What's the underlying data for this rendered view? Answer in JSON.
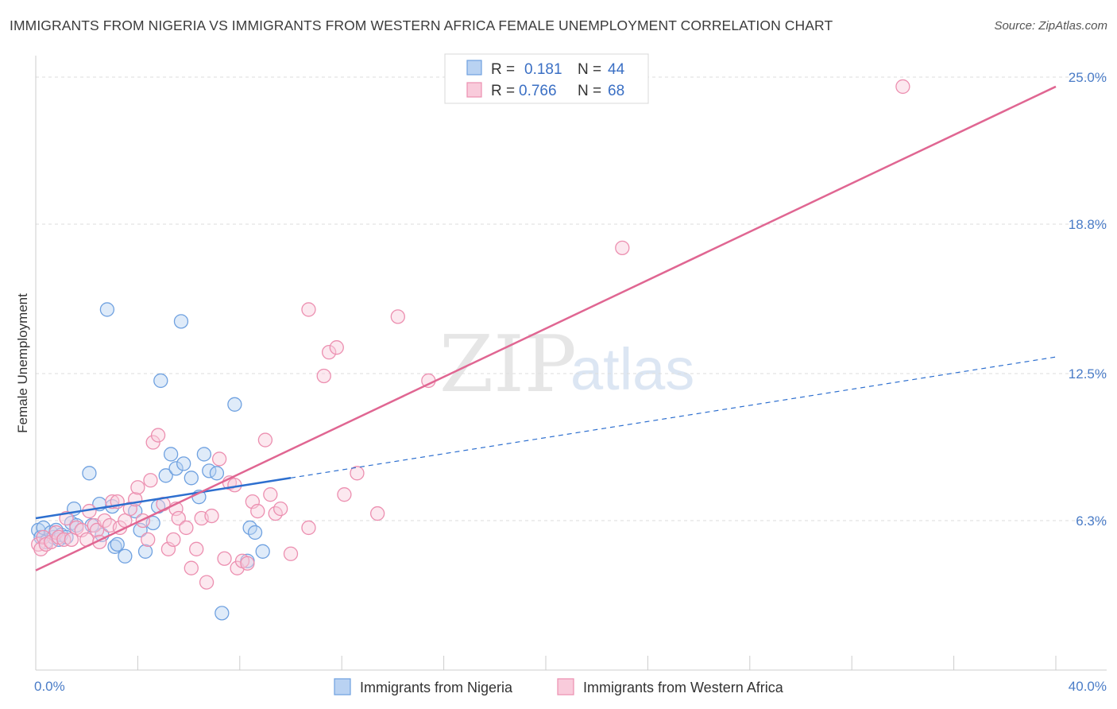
{
  "title": "IMMIGRANTS FROM NIGERIA VS IMMIGRANTS FROM WESTERN AFRICA FEMALE UNEMPLOYMENT CORRELATION CHART",
  "source": "Source: ZipAtlas.com",
  "watermark": {
    "zip": "ZIP",
    "atlas": "atlas"
  },
  "colors": {
    "nigeria": "#6fa1e0",
    "nigeria_fill": "#b9d2f2",
    "nigeria_line": "#2d6fcf",
    "western_africa": "#ec8fb0",
    "western_africa_fill": "#f9cbdb",
    "western_africa_line": "#e06692",
    "tick_label": "#4a7cc7",
    "grid": "#dddddd"
  },
  "legend": {
    "rows": [
      {
        "r_label": "R =",
        "r_value": "0.181",
        "n_label": "N =",
        "n_value": "44"
      },
      {
        "r_label": "R =",
        "r_value": "0.766",
        "n_label": "N =",
        "n_value": "68"
      }
    ]
  },
  "chart_data": {
    "type": "scatter",
    "title": "IMMIGRANTS FROM NIGERIA VS IMMIGRANTS FROM WESTERN AFRICA FEMALE UNEMPLOYMENT CORRELATION CHART",
    "xlabel": "",
    "ylabel": "Female Unemployment",
    "xlim": [
      0,
      40
    ],
    "ylim": [
      0,
      26.5
    ],
    "x_tick_labels": [
      "0.0%",
      "40.0%"
    ],
    "y_ticks": [
      6.3,
      12.5,
      18.8,
      25.0
    ],
    "y_tick_labels": [
      "6.3%",
      "12.5%",
      "18.8%",
      "25.0%"
    ],
    "grid": true,
    "legend_position": "top-center",
    "series": [
      {
        "name": "Immigrants from Nigeria",
        "r": 0.181,
        "n": 44,
        "trend": {
          "x": [
            0,
            10
          ],
          "y": [
            6.4,
            8.1
          ],
          "dashed_to": {
            "x": 40,
            "y": 13.2
          }
        },
        "points": [
          [
            0.1,
            5.9
          ],
          [
            0.2,
            5.6
          ],
          [
            0.3,
            6.0
          ],
          [
            0.4,
            5.4
          ],
          [
            0.6,
            5.8
          ],
          [
            0.7,
            5.6
          ],
          [
            0.8,
            5.9
          ],
          [
            0.9,
            5.5
          ],
          [
            1.0,
            5.7
          ],
          [
            1.2,
            5.6
          ],
          [
            1.4,
            6.2
          ],
          [
            1.6,
            6.1
          ],
          [
            1.5,
            6.8
          ],
          [
            2.1,
            8.3
          ],
          [
            2.2,
            6.1
          ],
          [
            2.5,
            7.0
          ],
          [
            2.6,
            5.7
          ],
          [
            2.8,
            15.2
          ],
          [
            3.0,
            6.9
          ],
          [
            3.1,
            5.2
          ],
          [
            3.2,
            5.3
          ],
          [
            3.5,
            4.8
          ],
          [
            3.9,
            6.7
          ],
          [
            4.1,
            5.9
          ],
          [
            4.3,
            5.0
          ],
          [
            4.6,
            6.2
          ],
          [
            4.8,
            6.9
          ],
          [
            4.9,
            12.2
          ],
          [
            5.1,
            8.2
          ],
          [
            5.3,
            9.1
          ],
          [
            5.5,
            8.5
          ],
          [
            5.7,
            14.7
          ],
          [
            5.8,
            8.7
          ],
          [
            6.1,
            8.1
          ],
          [
            6.4,
            7.3
          ],
          [
            6.6,
            9.1
          ],
          [
            6.8,
            8.4
          ],
          [
            7.1,
            8.3
          ],
          [
            7.3,
            2.4
          ],
          [
            7.8,
            11.2
          ],
          [
            8.3,
            4.6
          ],
          [
            8.4,
            6.0
          ],
          [
            8.6,
            5.8
          ],
          [
            8.9,
            5.0
          ]
        ]
      },
      {
        "name": "Immigrants from Western Africa",
        "r": 0.766,
        "n": 68,
        "trend": {
          "x": [
            0,
            40
          ],
          "y": [
            4.2,
            24.6
          ]
        },
        "points": [
          [
            0.1,
            5.3
          ],
          [
            0.2,
            5.1
          ],
          [
            0.3,
            5.6
          ],
          [
            0.4,
            5.3
          ],
          [
            0.6,
            5.4
          ],
          [
            0.8,
            5.8
          ],
          [
            0.9,
            5.6
          ],
          [
            1.1,
            5.5
          ],
          [
            1.2,
            6.4
          ],
          [
            1.4,
            5.5
          ],
          [
            1.6,
            6.0
          ],
          [
            1.8,
            5.9
          ],
          [
            2.0,
            5.5
          ],
          [
            2.1,
            6.7
          ],
          [
            2.3,
            6.1
          ],
          [
            2.4,
            5.9
          ],
          [
            2.5,
            5.4
          ],
          [
            2.7,
            6.3
          ],
          [
            2.9,
            6.1
          ],
          [
            3.0,
            7.1
          ],
          [
            3.2,
            7.1
          ],
          [
            3.3,
            6.0
          ],
          [
            3.5,
            6.3
          ],
          [
            3.7,
            6.8
          ],
          [
            3.9,
            7.2
          ],
          [
            4.0,
            7.7
          ],
          [
            4.2,
            6.3
          ],
          [
            4.4,
            5.5
          ],
          [
            4.5,
            8.0
          ],
          [
            4.6,
            9.6
          ],
          [
            4.8,
            9.9
          ],
          [
            5.0,
            7.0
          ],
          [
            5.2,
            5.1
          ],
          [
            5.4,
            5.5
          ],
          [
            5.5,
            6.8
          ],
          [
            5.6,
            6.4
          ],
          [
            5.9,
            6.0
          ],
          [
            6.1,
            4.3
          ],
          [
            6.3,
            5.1
          ],
          [
            6.5,
            6.4
          ],
          [
            6.7,
            3.7
          ],
          [
            6.9,
            6.5
          ],
          [
            7.2,
            8.9
          ],
          [
            7.4,
            4.7
          ],
          [
            7.6,
            7.9
          ],
          [
            7.8,
            7.8
          ],
          [
            7.9,
            4.3
          ],
          [
            8.1,
            4.6
          ],
          [
            8.3,
            4.5
          ],
          [
            8.5,
            7.1
          ],
          [
            8.7,
            6.7
          ],
          [
            9.0,
            9.7
          ],
          [
            9.2,
            7.4
          ],
          [
            9.4,
            6.6
          ],
          [
            9.6,
            6.8
          ],
          [
            10.0,
            4.9
          ],
          [
            10.7,
            15.2
          ],
          [
            10.7,
            6.0
          ],
          [
            11.3,
            12.4
          ],
          [
            11.5,
            13.4
          ],
          [
            11.8,
            13.6
          ],
          [
            12.1,
            7.4
          ],
          [
            12.6,
            8.3
          ],
          [
            13.4,
            6.6
          ],
          [
            14.2,
            14.9
          ],
          [
            15.4,
            12.2
          ],
          [
            23.0,
            17.8
          ],
          [
            34.0,
            24.6
          ]
        ]
      }
    ]
  },
  "axis": {
    "y_label": "Female Unemployment",
    "x_min_label": "0.0%",
    "x_max_label": "40.0%"
  },
  "bottom_legend": {
    "nigeria": "Immigrants from Nigeria",
    "western_africa": "Immigrants from Western Africa"
  }
}
